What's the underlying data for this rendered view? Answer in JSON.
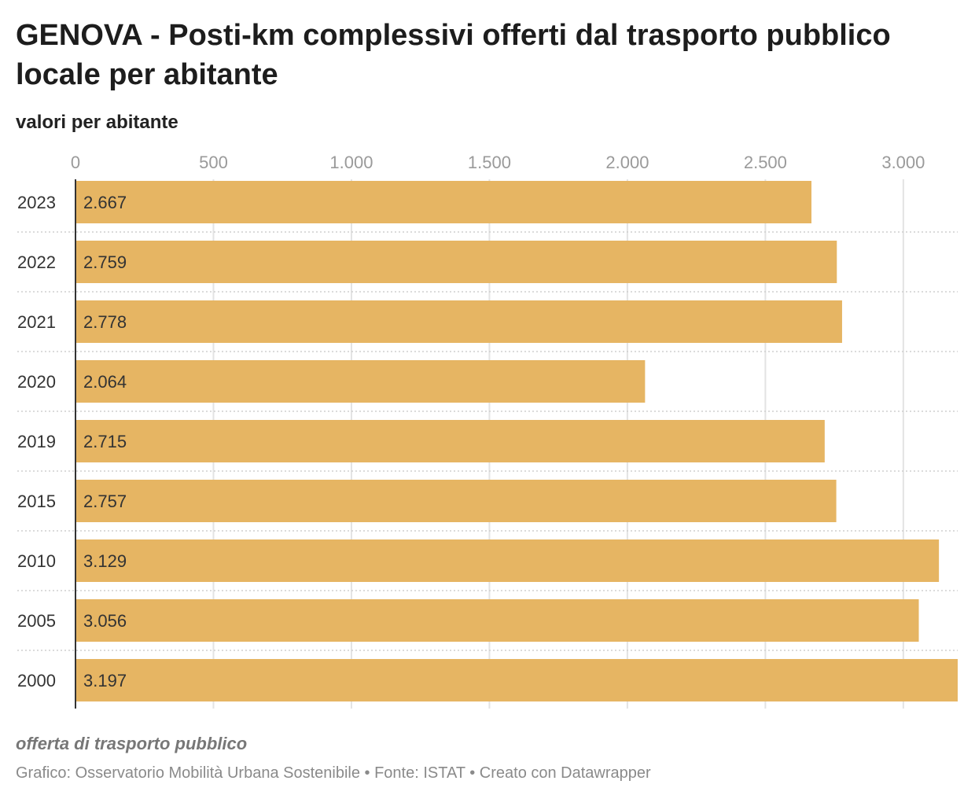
{
  "header": {
    "title": "GENOVA - Posti-km complessivi offerti dal trasporto pubblico locale per abitante",
    "subtitle": "valori per abitante"
  },
  "footer": {
    "note": "offerta di trasporto pubblico",
    "credit": "Grafico: Osservatorio Mobilità Urbana Sostenibile • Fonte: ISTAT • Creato con Datawrapper"
  },
  "colors": {
    "bar": "#e6b563",
    "grid": "#e3e3e3",
    "axis": "#333333"
  },
  "chart_data": {
    "type": "bar",
    "orientation": "horizontal",
    "title": "GENOVA - Posti-km complessivi offerti dal trasporto pubblico locale per abitante",
    "subtitle": "valori per abitante",
    "categories": [
      "2023",
      "2022",
      "2021",
      "2020",
      "2019",
      "2015",
      "2010",
      "2005",
      "2000"
    ],
    "values": [
      2667,
      2759,
      2778,
      2064,
      2715,
      2757,
      3129,
      3056,
      3197
    ],
    "value_labels": [
      "2.667",
      "2.759",
      "2.778",
      "2.064",
      "2.715",
      "2.757",
      "3.129",
      "3.056",
      "3.197"
    ],
    "xticks": [
      0,
      500,
      1000,
      1500,
      2000,
      2500,
      3000
    ],
    "xtick_labels": [
      "0",
      "500",
      "1.000",
      "1.500",
      "2.000",
      "2.500",
      "3.000"
    ],
    "xlim": [
      0,
      3197
    ],
    "grid": true,
    "xaxis_position": "top"
  }
}
